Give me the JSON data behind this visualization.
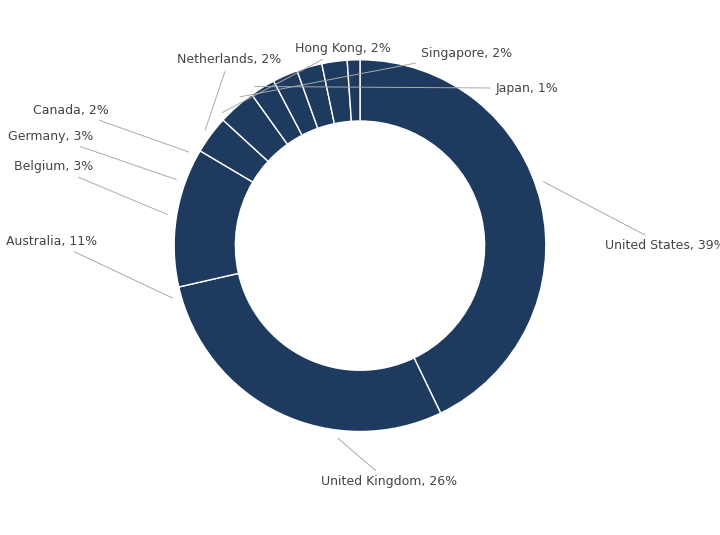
{
  "labels": [
    "United States",
    "United Kingdom",
    "Australia",
    "Belgium",
    "Germany",
    "Canada",
    "Netherlands",
    "Hong Kong",
    "Singapore",
    "Japan"
  ],
  "values": [
    39,
    26,
    11,
    3,
    3,
    2,
    2,
    2,
    2,
    1
  ],
  "pie_color": "#1e3a5f",
  "wedge_linecolor": "white",
  "wedge_linewidth": 1.0,
  "background_color": "#ffffff",
  "label_color": "#444444",
  "label_fontsize": 9.0,
  "donut_width": 0.28,
  "annotation_line_color": "#aaaaaa",
  "figsize": [
    7.2,
    5.35
  ],
  "dpi": 100
}
